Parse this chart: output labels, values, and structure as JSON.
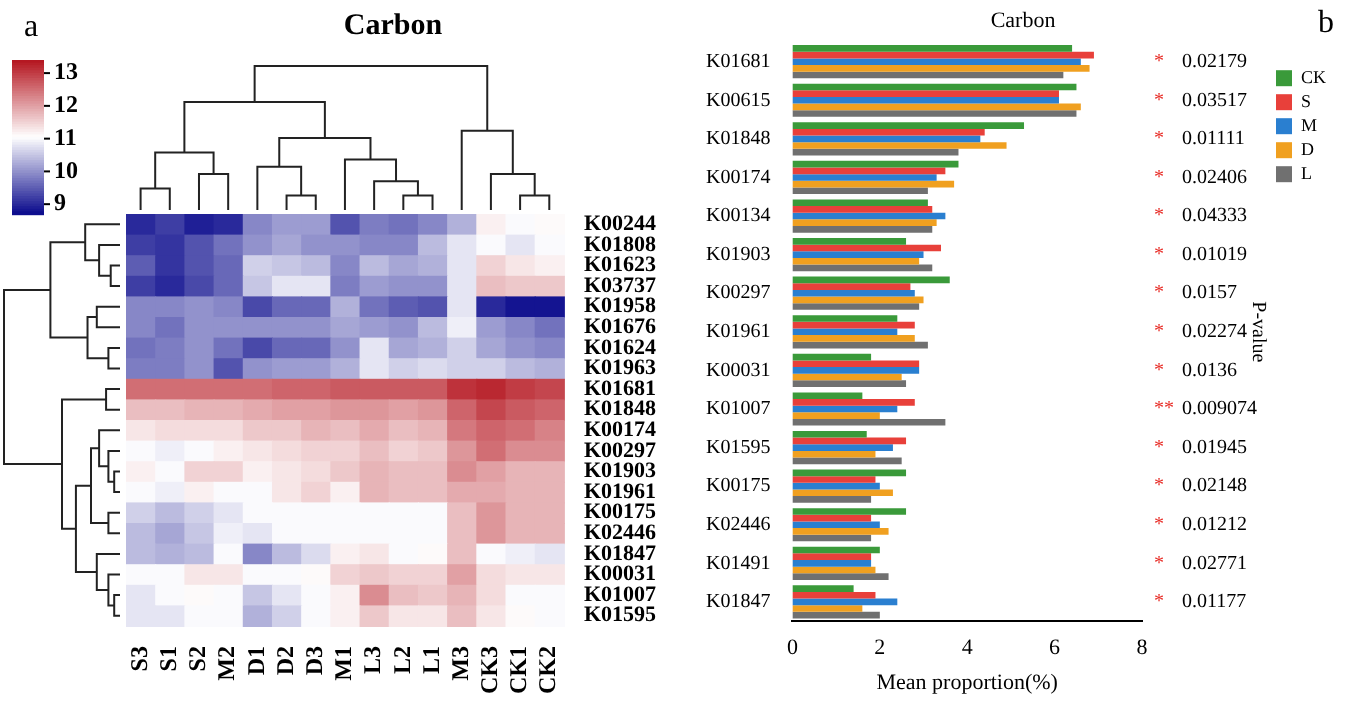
{
  "chart_data": [
    {
      "type": "heatmap",
      "title": "Carbon",
      "categories": [
        "S3",
        "S1",
        "S2",
        "M2",
        "D1",
        "D2",
        "D3",
        "M1",
        "L3",
        "L2",
        "L1",
        "M3",
        "CK3",
        "CK1",
        "CK2"
      ],
      "y_categories": [
        "K00244",
        "K01808",
        "K01623",
        "K03737",
        "K01958",
        "K01676",
        "K01624",
        "K01963",
        "K01681",
        "K01848",
        "K00174",
        "K00297",
        "K01903",
        "K01961",
        "K00175",
        "K02446",
        "K01847",
        "K00031",
        "K01007",
        "K01595"
      ],
      "cells": [
        [
          9.0,
          9.2,
          8.9,
          9.0,
          9.9,
          10.1,
          10.1,
          9.4,
          9.8,
          9.7,
          9.9,
          10.3,
          11.2,
          11.0,
          11.1
        ],
        [
          9.2,
          9.1,
          9.4,
          9.7,
          10.0,
          10.2,
          10.0,
          10.0,
          9.9,
          9.9,
          10.4,
          10.8,
          11.0,
          10.8,
          11.0
        ],
        [
          9.5,
          9.1,
          9.4,
          9.6,
          10.6,
          10.5,
          10.4,
          9.9,
          10.4,
          10.2,
          10.3,
          10.8,
          11.5,
          11.3,
          11.2
        ],
        [
          9.2,
          9.0,
          9.3,
          9.6,
          10.5,
          10.8,
          10.8,
          9.8,
          10.1,
          10.0,
          10.0,
          10.8,
          11.7,
          11.6,
          11.6
        ],
        [
          9.9,
          9.9,
          10.0,
          9.9,
          9.3,
          9.6,
          9.6,
          10.3,
          9.7,
          9.5,
          9.4,
          10.8,
          9.0,
          8.8,
          8.8
        ],
        [
          9.9,
          9.7,
          10.0,
          10.0,
          10.0,
          10.0,
          10.0,
          10.2,
          10.1,
          10.0,
          10.4,
          10.9,
          10.1,
          9.9,
          9.7
        ],
        [
          9.7,
          9.8,
          10.0,
          9.7,
          9.3,
          9.6,
          9.6,
          10.0,
          10.8,
          10.2,
          10.3,
          10.6,
          10.2,
          10.0,
          9.9
        ],
        [
          9.8,
          9.8,
          10.0,
          9.4,
          10.0,
          10.1,
          10.1,
          10.3,
          10.8,
          10.6,
          10.7,
          10.6,
          10.6,
          10.4,
          10.3
        ],
        [
          12.5,
          12.5,
          12.5,
          12.5,
          12.5,
          12.6,
          12.6,
          12.7,
          12.7,
          12.7,
          12.7,
          13.1,
          13.2,
          13.0,
          12.9
        ],
        [
          11.7,
          11.7,
          11.8,
          11.8,
          11.9,
          12.0,
          12.0,
          12.1,
          12.1,
          12.0,
          12.1,
          12.6,
          12.9,
          12.7,
          12.6
        ],
        [
          11.3,
          11.4,
          11.4,
          11.4,
          11.6,
          11.6,
          11.8,
          11.7,
          11.9,
          11.7,
          11.8,
          12.4,
          12.6,
          12.5,
          12.3
        ],
        [
          11.0,
          10.9,
          11.0,
          11.2,
          11.3,
          11.4,
          11.5,
          11.5,
          11.7,
          11.5,
          11.6,
          12.1,
          12.5,
          12.2,
          12.2
        ],
        [
          11.2,
          11.0,
          11.5,
          11.5,
          11.2,
          11.3,
          11.4,
          11.6,
          11.8,
          11.7,
          11.7,
          12.2,
          12.0,
          11.8,
          11.8
        ],
        [
          11.0,
          10.9,
          11.2,
          11.0,
          11.0,
          11.3,
          11.5,
          11.2,
          11.8,
          11.7,
          11.7,
          11.9,
          11.9,
          11.8,
          11.8
        ],
        [
          10.6,
          10.4,
          10.6,
          10.8,
          11.0,
          11.0,
          11.0,
          11.0,
          11.0,
          11.0,
          11.0,
          11.7,
          12.1,
          11.8,
          11.8
        ],
        [
          10.4,
          10.2,
          10.5,
          10.9,
          10.8,
          11.0,
          11.0,
          11.0,
          11.0,
          11.0,
          11.0,
          11.7,
          12.1,
          11.8,
          11.8
        ],
        [
          10.4,
          10.3,
          10.4,
          11.0,
          9.9,
          10.4,
          10.7,
          11.2,
          11.3,
          11.0,
          11.1,
          11.7,
          11.0,
          10.9,
          10.8
        ],
        [
          11.0,
          11.0,
          11.3,
          11.3,
          11.0,
          11.0,
          11.1,
          11.5,
          11.6,
          11.5,
          11.5,
          12.0,
          11.4,
          11.3,
          11.3
        ],
        [
          10.8,
          11.0,
          11.1,
          11.0,
          10.5,
          10.8,
          11.0,
          11.2,
          12.2,
          11.7,
          11.6,
          11.8,
          11.4,
          11.0,
          11.0
        ],
        [
          10.8,
          10.8,
          11.0,
          11.0,
          10.3,
          10.6,
          11.0,
          11.2,
          11.6,
          11.3,
          11.3,
          11.7,
          11.3,
          11.1,
          11.0
        ]
      ],
      "clim": [
        8.7,
        13.4
      ],
      "cticks": [
        9,
        10,
        11,
        12,
        13
      ],
      "annotations": [
        "a"
      ]
    },
    {
      "type": "bar",
      "orientation": "horizontal",
      "title": "Carbon",
      "xlabel": "Mean proportion(%)",
      "y2label": "P-value",
      "categories": [
        "K01681",
        "K00615",
        "K01848",
        "K00174",
        "K00134",
        "K01903",
        "K00297",
        "K01961",
        "K00031",
        "K01007",
        "K01595",
        "K00175",
        "K02446",
        "K01491",
        "K01847"
      ],
      "series": [
        {
          "name": "CK",
          "color": "#3a9a3a",
          "values": [
            6.4,
            6.5,
            5.3,
            3.8,
            3.1,
            2.6,
            3.6,
            2.4,
            1.8,
            1.6,
            1.7,
            2.6,
            2.6,
            2.0,
            1.4
          ]
        },
        {
          "name": "S",
          "color": "#e8403a",
          "values": [
            6.9,
            6.1,
            4.4,
            3.5,
            3.2,
            3.4,
            2.7,
            2.8,
            2.9,
            2.8,
            2.6,
            1.9,
            1.8,
            1.8,
            1.9
          ]
        },
        {
          "name": "M",
          "color": "#2a7fd0",
          "values": [
            6.6,
            6.1,
            4.3,
            3.3,
            3.5,
            3.0,
            2.8,
            2.4,
            2.9,
            2.4,
            2.3,
            2.0,
            2.0,
            1.8,
            2.4
          ]
        },
        {
          "name": "D",
          "color": "#f0a020",
          "values": [
            6.8,
            6.6,
            4.9,
            3.7,
            3.3,
            2.9,
            3.0,
            2.8,
            2.5,
            2.0,
            1.9,
            2.3,
            2.2,
            1.9,
            1.6
          ]
        },
        {
          "name": "L",
          "color": "#707070",
          "values": [
            6.2,
            6.5,
            3.8,
            3.1,
            3.2,
            3.2,
            2.9,
            3.1,
            2.6,
            3.5,
            2.5,
            1.8,
            1.8,
            2.2,
            2.0
          ]
        }
      ],
      "xlim": [
        0,
        8
      ],
      "xticks": [
        0,
        2,
        4,
        6,
        8
      ],
      "legend": "right",
      "annotations": [
        "b",
        "* 0.02179",
        "* 0.03517",
        "* 0.01111",
        "* 0.02406",
        "* 0.04333",
        "* 0.01019",
        "* 0.0157",
        "* 0.02274",
        "* 0.0136",
        "** 0.009074",
        "* 0.01945",
        "* 0.02148",
        "* 0.01212",
        "* 0.02771",
        "* 0.01177"
      ]
    }
  ]
}
